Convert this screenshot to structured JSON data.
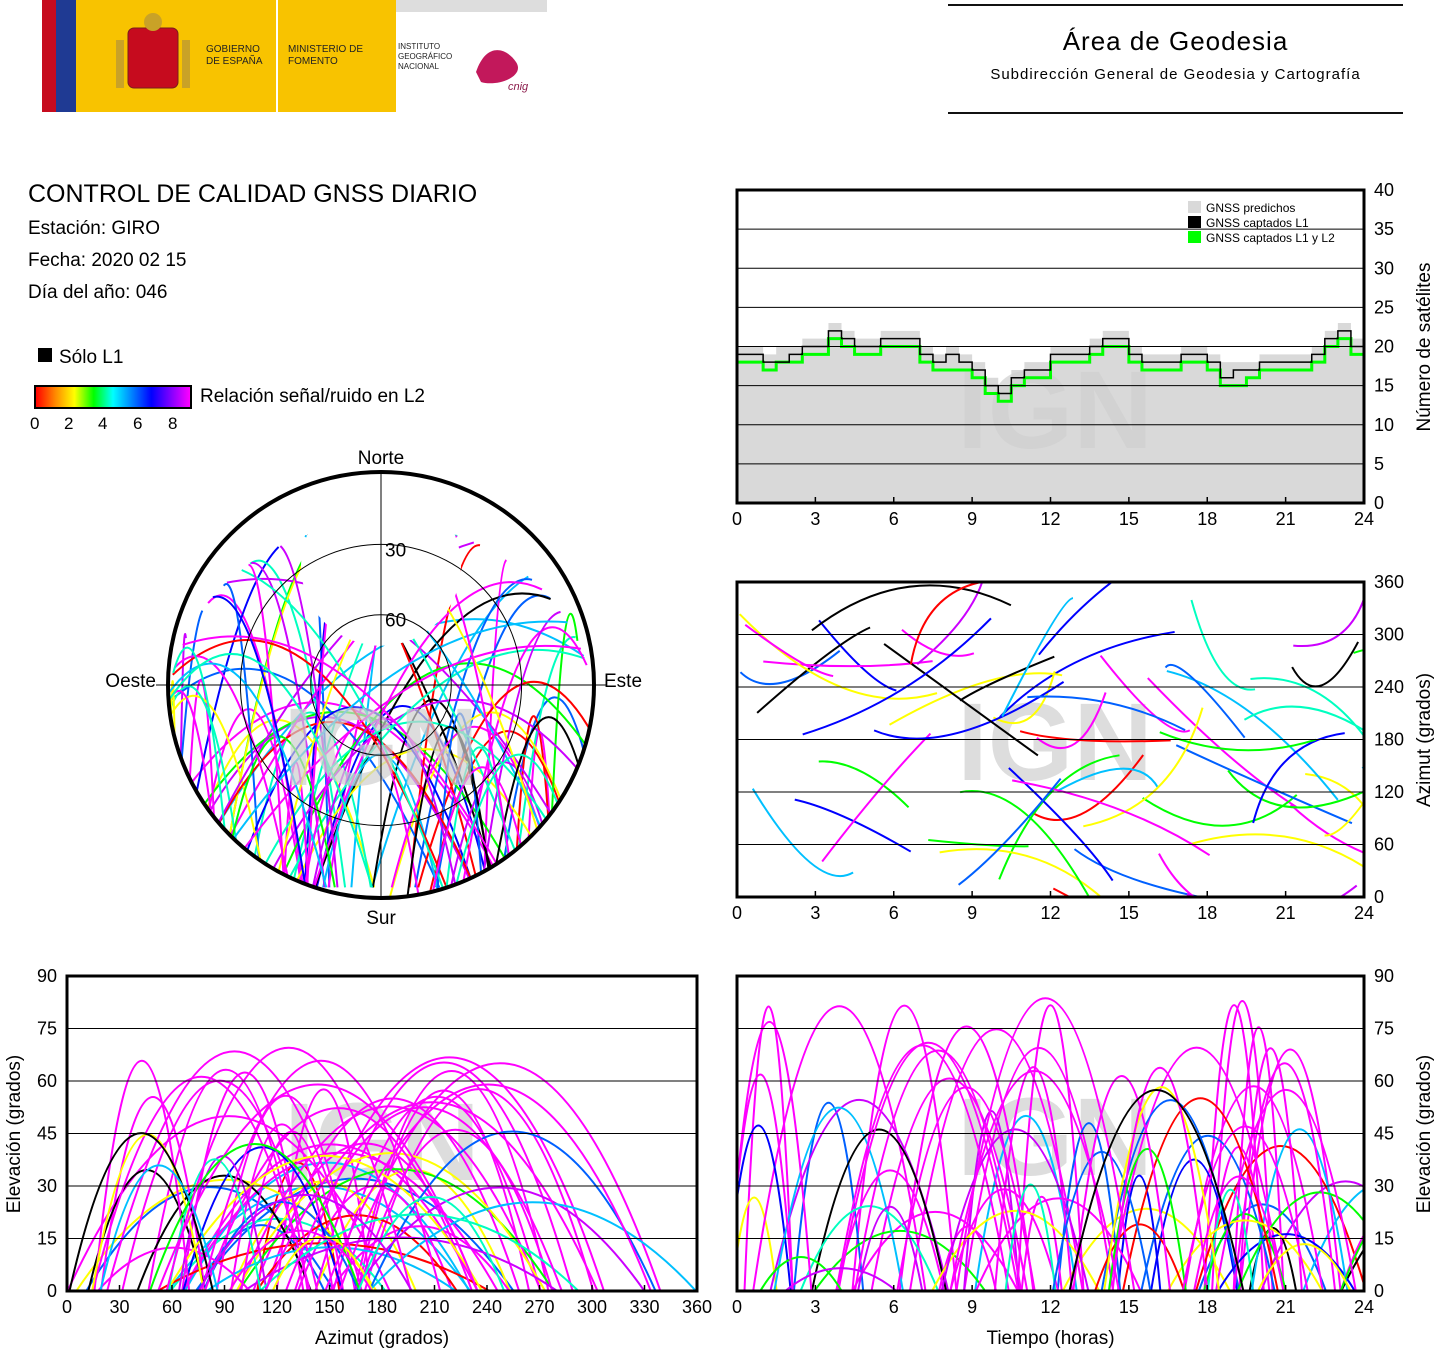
{
  "header": {
    "logos": [
      "GOBIERNO DE ESPAÑA",
      "MINISTERIO DE FOMENTO",
      "INSTITUTO GEOGRÁFICO NACIONAL",
      "cnig"
    ],
    "area_title": "Área de Geodesia",
    "area_subtitle": "Subdirección General de Geodesia y Cartografía"
  },
  "report": {
    "title": "CONTROL DE CALIDAD GNSS DIARIO",
    "station": "Estación: GIRO",
    "date": "Fecha: 2020 02 15",
    "doy": "Día del año: 046"
  },
  "legend": {
    "l1_only": "Sólo L1",
    "snr_label": "Relación señal/ruido en L2",
    "snr_ticks": [
      "0",
      "2",
      "4",
      "6",
      "8"
    ],
    "snr_colors": [
      "#ff0000",
      "#ff8800",
      "#ffff00",
      "#00ff00",
      "#00ffff",
      "#0080ff",
      "#0000ff",
      "#8000ff",
      "#ff00ff"
    ]
  },
  "watermark": "IGN",
  "colors": {
    "predicted": "#d9d9d9",
    "l1": "#000000",
    "l1l2": "#00ff00",
    "magenta": "#ff00ff"
  },
  "chart_data": [
    {
      "type": "area",
      "id": "satellite-count",
      "xlabel": "",
      "ylabel": "Número de satélites",
      "xlim": [
        0,
        24
      ],
      "ylim": [
        0,
        40
      ],
      "xticks": [
        "0",
        "3",
        "6",
        "9",
        "12",
        "15",
        "18",
        "21",
        "24"
      ],
      "yticks": [
        "0",
        "5",
        "10",
        "15",
        "20",
        "25",
        "30",
        "35",
        "40"
      ],
      "legend_position": "top-right",
      "x": [
        0,
        0.5,
        1,
        1.5,
        2,
        2.5,
        3,
        3.5,
        4,
        4.5,
        5,
        5.5,
        6,
        6.5,
        7,
        7.5,
        8,
        8.5,
        9,
        9.5,
        10,
        10.5,
        11,
        11.5,
        12,
        12.5,
        13,
        13.5,
        14,
        14.5,
        15,
        15.5,
        16,
        16.5,
        17,
        17.5,
        18,
        18.5,
        19,
        19.5,
        20,
        20.5,
        21,
        21.5,
        22,
        22.5,
        23,
        23.5,
        24
      ],
      "series": [
        {
          "name": "GNSS predichos",
          "values": [
            20,
            20,
            19,
            20,
            20,
            21,
            21,
            23,
            22,
            21,
            21,
            22,
            22,
            22,
            20,
            19,
            20,
            19,
            18,
            16,
            15,
            17,
            18,
            18,
            20,
            20,
            20,
            21,
            22,
            22,
            20,
            19,
            19,
            19,
            20,
            20,
            19,
            18,
            18,
            18,
            19,
            19,
            19,
            19,
            20,
            22,
            23,
            21,
            20
          ]
        },
        {
          "name": "GNSS captados L1",
          "values": [
            19,
            19,
            18,
            18,
            19,
            20,
            20,
            22,
            21,
            20,
            20,
            21,
            21,
            21,
            19,
            18,
            19,
            18,
            17,
            15,
            14,
            16,
            17,
            17,
            19,
            19,
            19,
            20,
            21,
            21,
            19,
            18,
            18,
            18,
            19,
            19,
            18,
            16,
            17,
            17,
            18,
            18,
            18,
            18,
            19,
            21,
            22,
            20,
            19
          ]
        },
        {
          "name": "GNSS captados L1 y L2",
          "values": [
            18,
            18,
            17,
            18,
            18,
            19,
            19,
            21,
            20,
            19,
            19,
            20,
            20,
            20,
            18,
            17,
            17,
            17,
            16,
            14,
            13,
            15,
            16,
            16,
            18,
            18,
            18,
            19,
            20,
            20,
            18,
            17,
            17,
            17,
            18,
            18,
            17,
            15,
            15,
            16,
            17,
            17,
            17,
            17,
            18,
            20,
            21,
            19,
            18
          ]
        }
      ]
    },
    {
      "type": "scatter",
      "id": "azimuth-vs-time",
      "xlabel": "",
      "ylabel": "Azimut (grados)",
      "xlim": [
        0,
        24
      ],
      "ylim": [
        0,
        360
      ],
      "xticks": [
        "0",
        "3",
        "6",
        "9",
        "12",
        "15",
        "18",
        "21",
        "24"
      ],
      "yticks": [
        "0",
        "60",
        "120",
        "180",
        "240",
        "300",
        "360"
      ]
    },
    {
      "type": "scatter",
      "id": "skyplot",
      "compass": {
        "north": "Norte",
        "south": "Sur",
        "east": "Este",
        "west": "Oeste"
      },
      "rings": [
        "30",
        "60"
      ]
    },
    {
      "type": "scatter",
      "id": "elevation-vs-azimuth",
      "xlabel": "Azimut (grados)",
      "ylabel": "Elevación (grados)",
      "xlim": [
        0,
        360
      ],
      "ylim": [
        0,
        90
      ],
      "xticks": [
        "0",
        "30",
        "60",
        "90",
        "120",
        "150",
        "180",
        "210",
        "240",
        "270",
        "300",
        "330",
        "360"
      ],
      "yticks": [
        "0",
        "15",
        "30",
        "45",
        "60",
        "75",
        "90"
      ]
    },
    {
      "type": "scatter",
      "id": "elevation-vs-time",
      "xlabel": "Tiempo (horas)",
      "ylabel": "Elevación (grados)",
      "xlim": [
        0,
        24
      ],
      "ylim": [
        0,
        90
      ],
      "xticks": [
        "0",
        "3",
        "6",
        "9",
        "12",
        "15",
        "18",
        "21",
        "24"
      ],
      "yticks": [
        "0",
        "15",
        "30",
        "45",
        "60",
        "75",
        "90"
      ]
    }
  ]
}
